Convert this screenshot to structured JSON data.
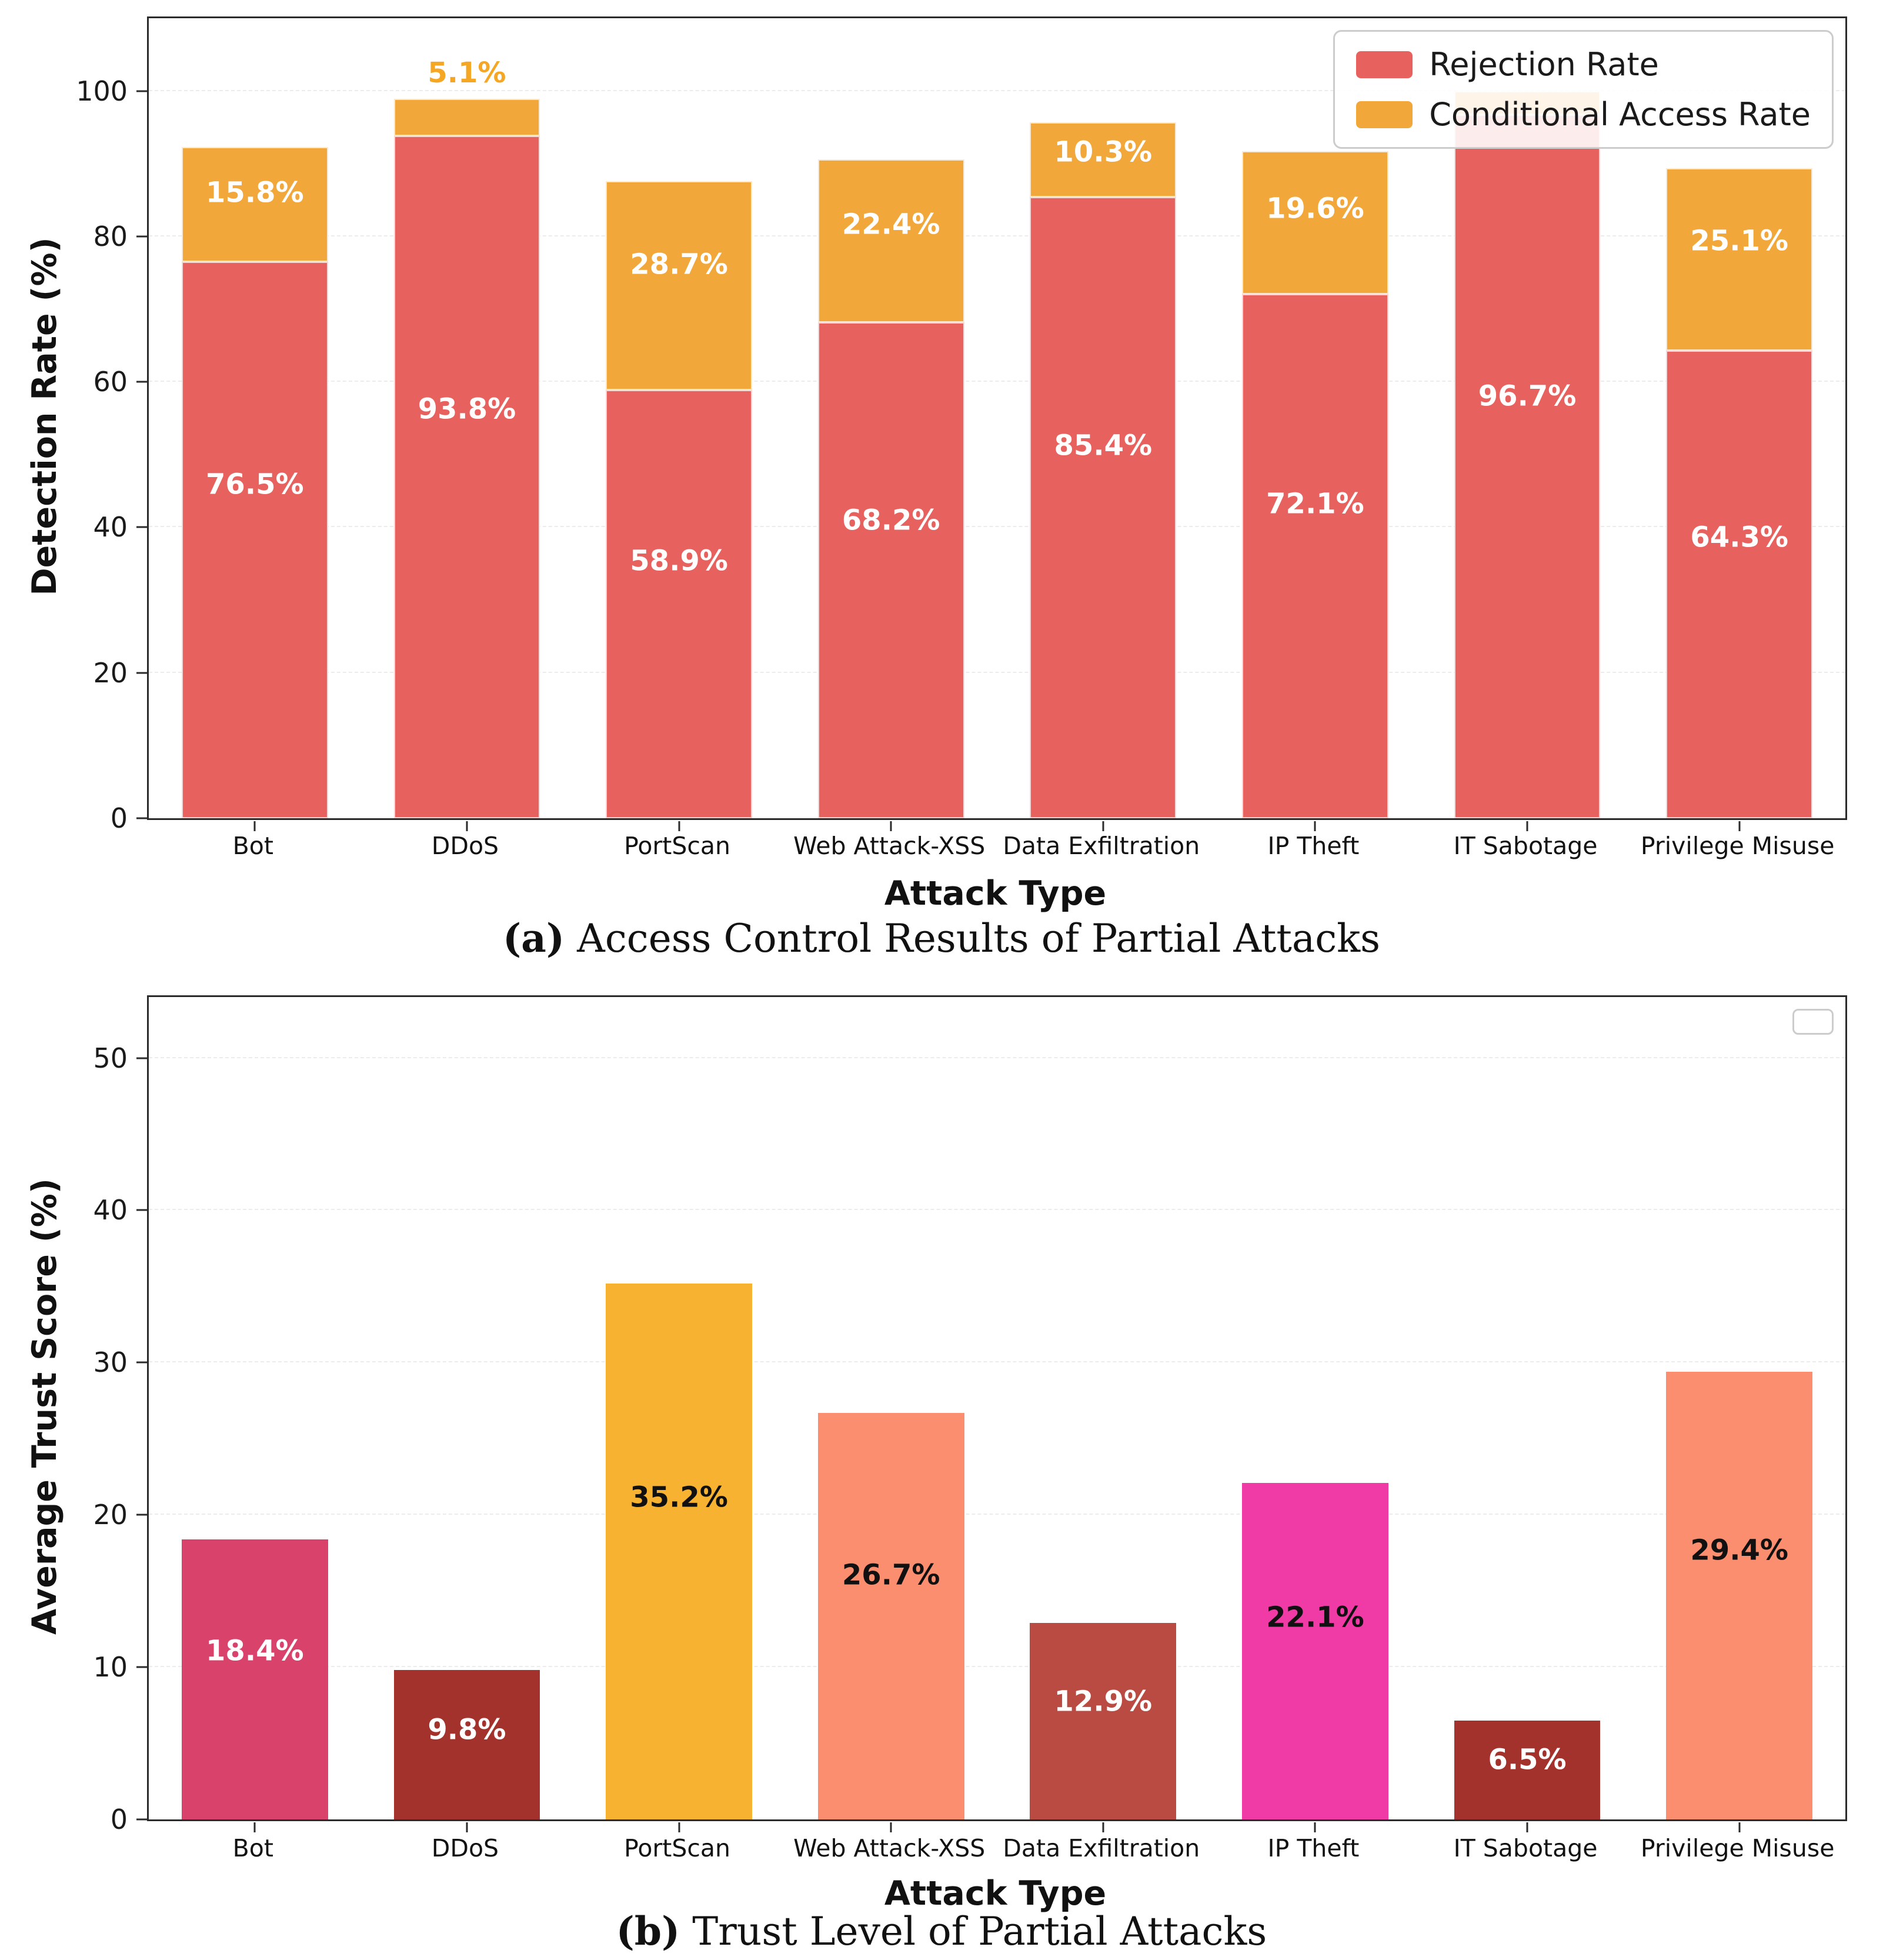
{
  "chart_data": [
    {
      "id": "a",
      "type": "bar",
      "stacked": true,
      "caption": {
        "label": "(a)",
        "text": " Access Control Results of Partial Attacks"
      },
      "xlabel": "Attack Type",
      "ylabel": "Detection Rate (%)",
      "ylim": [
        0,
        110
      ],
      "yticks": [
        0,
        20,
        40,
        60,
        80,
        100
      ],
      "grid": true,
      "legend": {
        "visible": true,
        "position": "upper-right",
        "items": [
          {
            "label": "Rejection Rate",
            "color": "#E7625E"
          },
          {
            "label": "Conditional Access Rate",
            "color": "#F2A73B"
          }
        ]
      },
      "categories": [
        "Bot",
        "DDoS",
        "PortScan",
        "Web Attack-XSS",
        "Data Exfiltration",
        "IP Theft",
        "IT Sabotage",
        "Privilege Misuse"
      ],
      "series": [
        {
          "name": "Rejection Rate",
          "color": "#E7625E",
          "values": [
            76.5,
            93.8,
            58.9,
            68.2,
            85.4,
            72.1,
            96.7,
            64.3
          ],
          "labels": [
            "76.5%",
            "93.8%",
            "58.9%",
            "68.2%",
            "85.4%",
            "72.1%",
            "96.7%",
            "64.3%"
          ],
          "label_modes": [
            "in",
            "in",
            "in",
            "in",
            "in",
            "in",
            "in",
            "in"
          ],
          "label_color": "#ffffff"
        },
        {
          "name": "Conditional Access Rate",
          "color": "#F2A73B",
          "values": [
            15.8,
            5.1,
            28.7,
            22.4,
            10.3,
            19.6,
            3.3,
            25.1
          ],
          "labels": [
            "15.8%",
            "5.1%",
            "28.7%",
            "22.4%",
            "10.3%",
            "19.6%",
            "",
            "25.1%"
          ],
          "label_modes": [
            "in",
            "above",
            "in",
            "in",
            "in",
            "in",
            "none",
            "in"
          ],
          "label_color": "#ffffff",
          "above_label_color": "#F5A623"
        }
      ]
    },
    {
      "id": "b",
      "type": "bar",
      "stacked": false,
      "caption": {
        "label": "(b)",
        "text": " Trust Level of Partial Attacks"
      },
      "xlabel": "Attack Type",
      "ylabel": "Average Trust Score (%)",
      "ylim": [
        0,
        54
      ],
      "yticks": [
        0,
        10,
        20,
        30,
        40,
        50
      ],
      "grid": true,
      "legend": {
        "visible": true,
        "empty": true,
        "items": []
      },
      "categories": [
        "Bot",
        "DDoS",
        "PortScan",
        "Web Attack-XSS",
        "Data Exfiltration",
        "IP Theft",
        "IT Sabotage",
        "Privilege Misuse"
      ],
      "values": [
        18.4,
        9.8,
        35.2,
        26.7,
        12.9,
        22.1,
        6.5,
        29.4
      ],
      "labels": [
        "18.4%",
        "9.8%",
        "35.2%",
        "26.7%",
        "12.9%",
        "22.1%",
        "6.5%",
        "29.4%"
      ],
      "bar_colors": [
        "#D9436B",
        "#A4322C",
        "#F7B231",
        "#FA8E6E",
        "#BA4B42",
        "#F03AA6",
        "#A4322C",
        "#FA8E6E"
      ],
      "label_colors": [
        "#ffffff",
        "#ffffff",
        "#111111",
        "#111111",
        "#ffffff",
        "#111111",
        "#ffffff",
        "#111111"
      ]
    }
  ]
}
